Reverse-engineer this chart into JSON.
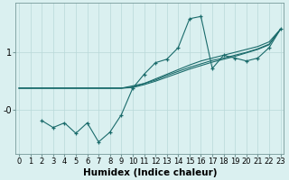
{
  "bg_color": "#daf0f0",
  "grid_color": "#b8d8d8",
  "line_color": "#1a6b6b",
  "xlabel": "Humidex (Indice chaleur)",
  "xlabel_fontsize": 7.5,
  "tick_fontsize": 6.0,
  "xlim": [
    -0.3,
    23.3
  ],
  "ylim": [
    -0.75,
    1.85
  ],
  "x_values": [
    0,
    1,
    2,
    3,
    4,
    5,
    6,
    7,
    8,
    9,
    10,
    11,
    12,
    13,
    14,
    15,
    16,
    17,
    18,
    19,
    20,
    21,
    22,
    23
  ],
  "series1_y": [
    0.38,
    0.38,
    0.38,
    0.38,
    0.38,
    0.38,
    0.38,
    0.38,
    0.38,
    0.38,
    0.42,
    0.46,
    0.54,
    0.62,
    0.7,
    0.78,
    0.85,
    0.9,
    0.95,
    1.0,
    1.05,
    1.1,
    1.18,
    1.4
  ],
  "series2_y": [
    0.38,
    0.38,
    0.38,
    0.38,
    0.38,
    0.38,
    0.38,
    0.38,
    0.38,
    0.38,
    0.4,
    0.46,
    0.52,
    0.6,
    0.67,
    0.74,
    0.8,
    0.86,
    0.9,
    0.95,
    1.0,
    1.06,
    1.14,
    1.4
  ],
  "series3_y": [
    0.38,
    0.38,
    0.38,
    0.38,
    0.38,
    0.38,
    0.38,
    0.38,
    0.38,
    0.38,
    0.39,
    0.44,
    0.5,
    0.57,
    0.64,
    0.71,
    0.77,
    0.83,
    0.88,
    0.93,
    0.99,
    1.05,
    1.13,
    1.4
  ],
  "series4_x": [
    2,
    3,
    4,
    5,
    6,
    7,
    8,
    9,
    10,
    11,
    12,
    13,
    14,
    15,
    16,
    17,
    18,
    19,
    20,
    21,
    22,
    23
  ],
  "series4_y": [
    -0.18,
    -0.3,
    -0.22,
    -0.4,
    -0.22,
    -0.55,
    -0.38,
    -0.08,
    0.38,
    0.62,
    0.82,
    0.88,
    1.08,
    1.58,
    1.62,
    0.72,
    0.95,
    0.9,
    0.85,
    0.9,
    1.08,
    1.4
  ]
}
